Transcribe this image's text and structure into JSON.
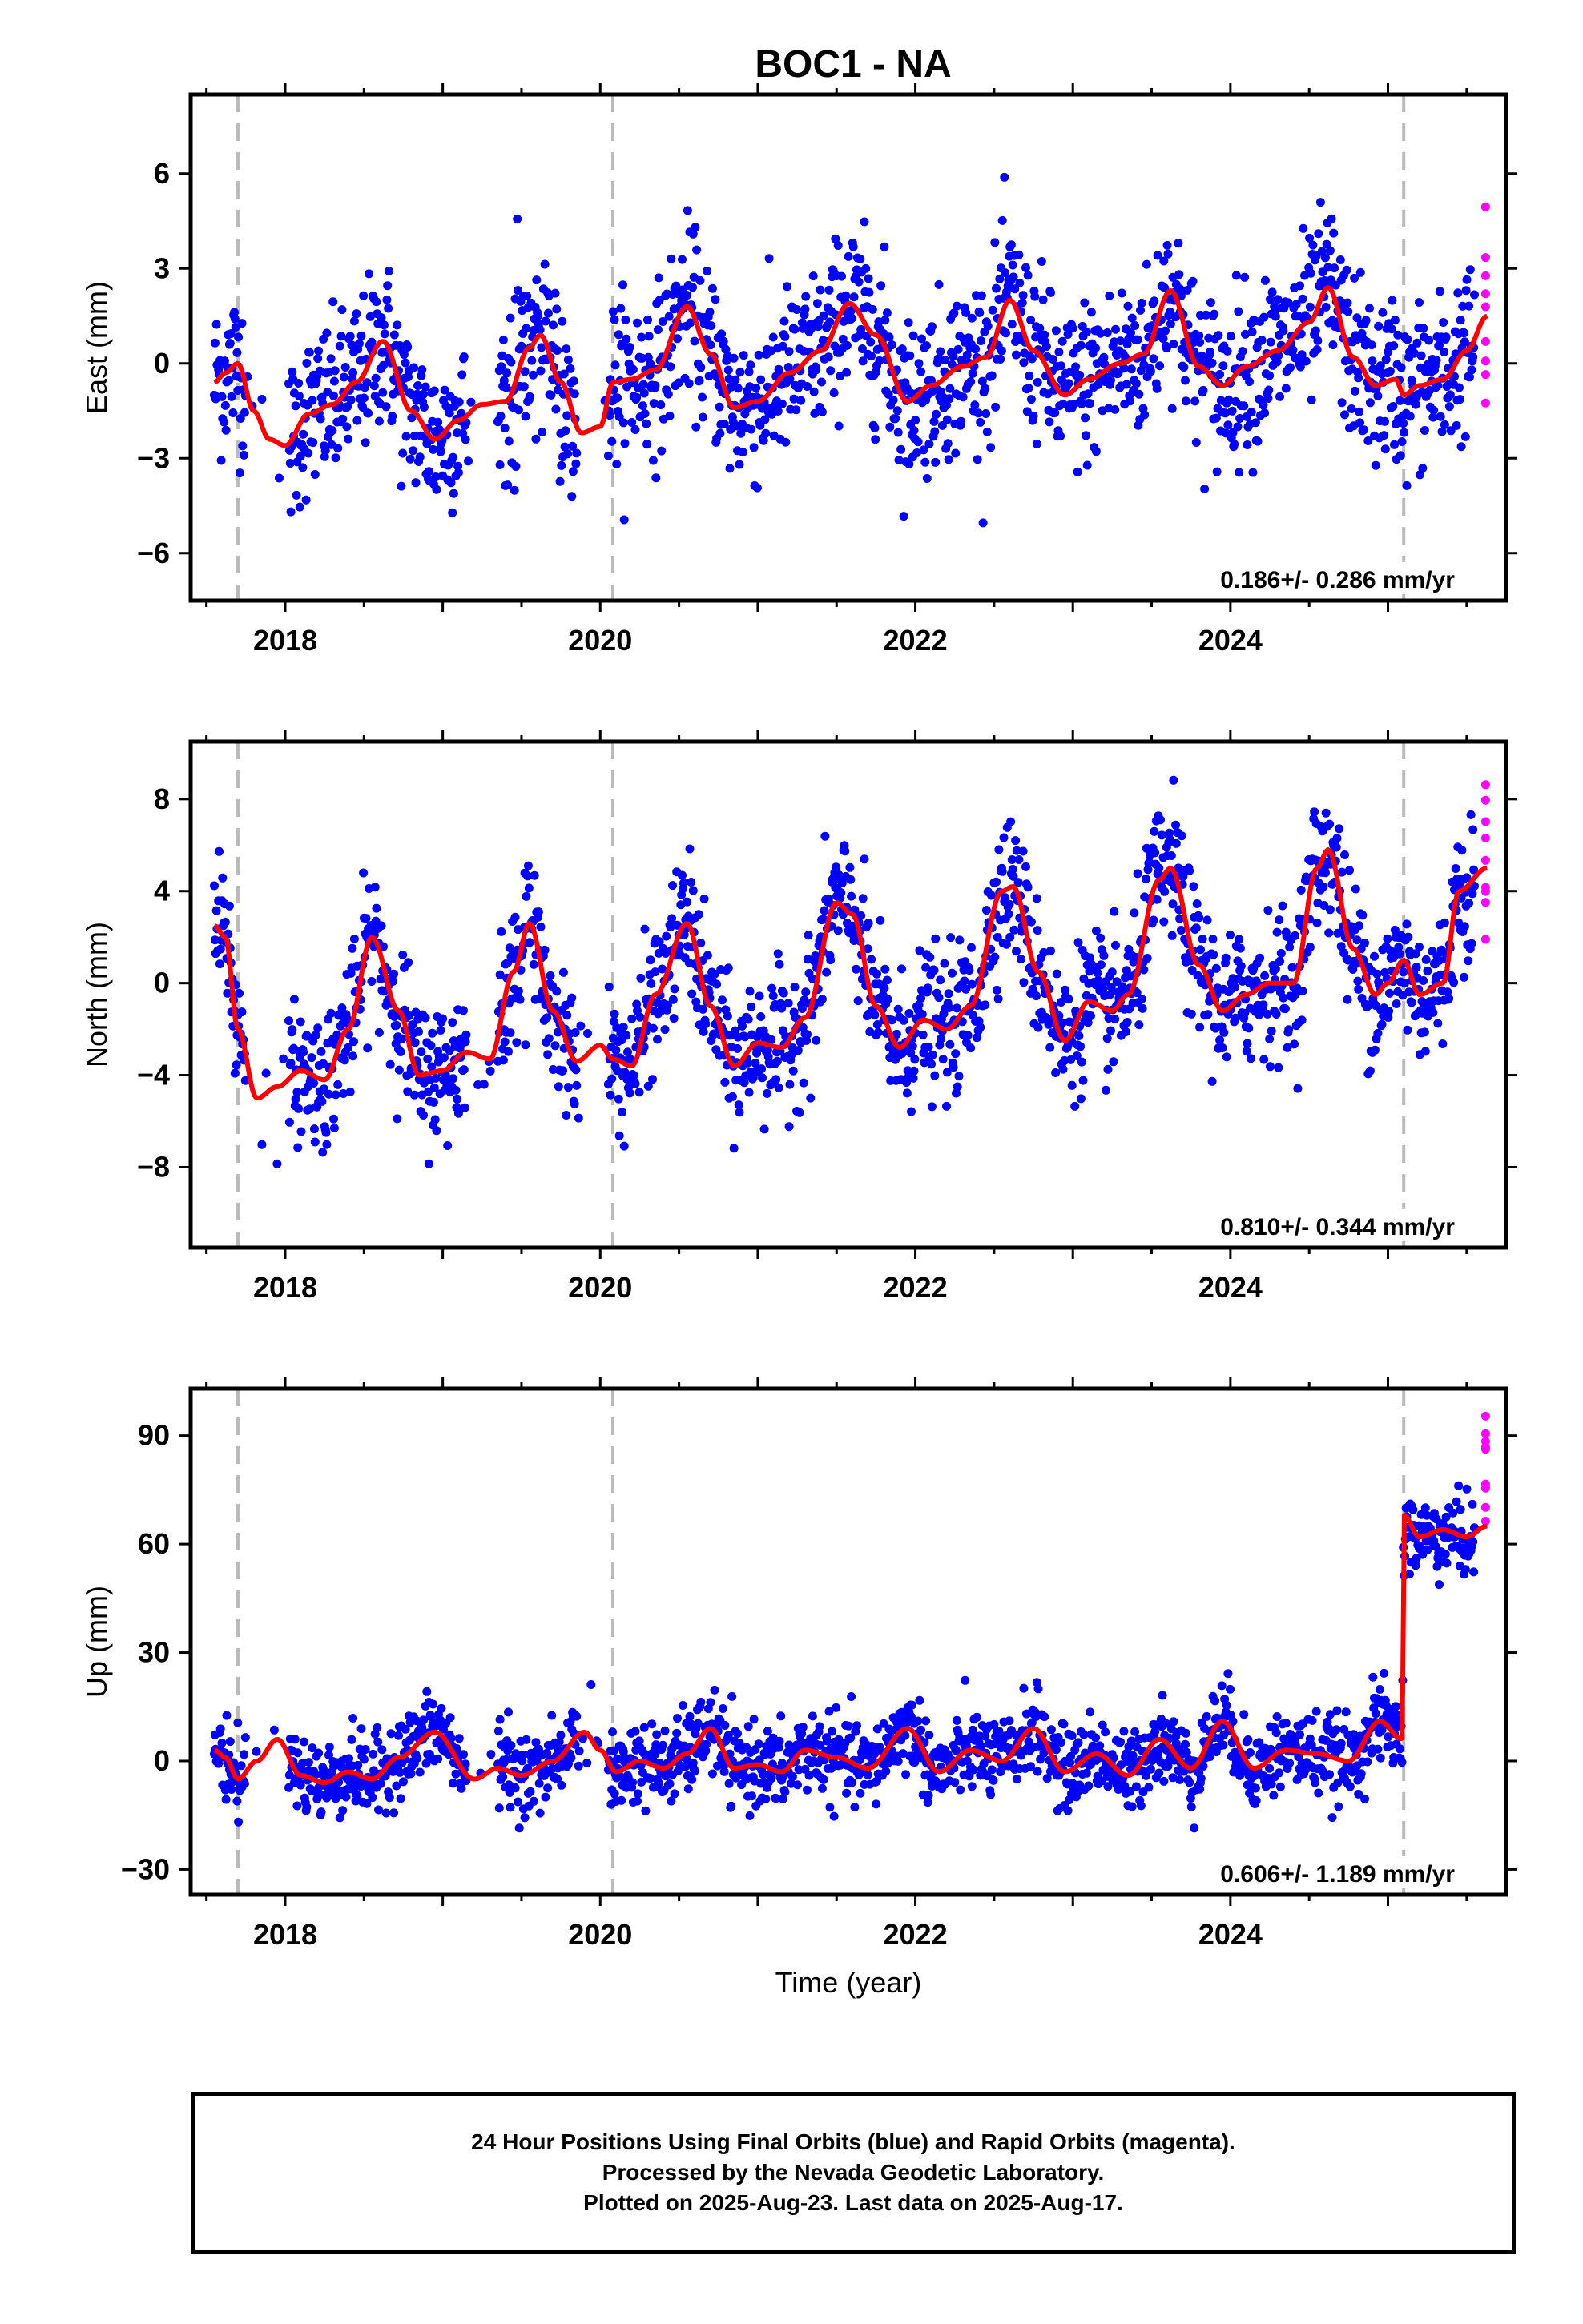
{
  "title": "BOC1 - NA",
  "footer": {
    "line1": "24 Hour Positions Using Final Orbits (blue) and Rapid Orbits (magenta).",
    "line2": "Processed by the Nevada Geodetic Laboratory.",
    "line3": "Plotted on 2025-Aug-23. Last data on 2025-Aug-17."
  },
  "colors": {
    "final": "#0000ff",
    "rapid": "#ff00ff",
    "model": "#ff0000",
    "marker_line": "#bbbbbb"
  },
  "chart_data": [
    {
      "type": "scatter",
      "ylabel": "East (mm)",
      "xlabel": "",
      "xlim": [
        2017.4,
        2025.75
      ],
      "ylim": [
        -7.5,
        8.5
      ],
      "yticks": [
        -6,
        -3,
        0,
        3,
        6
      ],
      "xticks": [
        2018,
        2020,
        2022,
        2024
      ],
      "rate_label": "0.186+/- 0.286 mm/yr",
      "marker_lines": [
        2017.7,
        2020.08,
        2025.1
      ],
      "final_range": [
        2017.55,
        2025.55
      ],
      "rapid_range": [
        2025.55,
        2025.63
      ],
      "gaps": [
        [
          2017.75,
          2018.02
        ],
        [
          2019.15,
          2019.35
        ],
        [
          2019.85,
          2020.05
        ]
      ],
      "noise_sd": 1.3,
      "model": {
        "type": "line",
        "name": "model",
        "x": [
          2017.55,
          2017.62,
          2017.7,
          2017.8,
          2017.9,
          2018.0,
          2018.15,
          2018.3,
          2018.45,
          2018.62,
          2018.8,
          2018.95,
          2019.1,
          2019.25,
          2019.4,
          2019.55,
          2019.62,
          2019.75,
          2019.88,
          2020.0,
          2020.08,
          2020.2,
          2020.35,
          2020.55,
          2020.7,
          2020.85,
          2021.0,
          2021.2,
          2021.4,
          2021.58,
          2021.75,
          2021.95,
          2022.1,
          2022.3,
          2022.45,
          2022.6,
          2022.75,
          2022.95,
          2023.1,
          2023.3,
          2023.45,
          2023.62,
          2023.8,
          2023.95,
          2024.1,
          2024.3,
          2024.5,
          2024.62,
          2024.78,
          2024.92,
          2025.05,
          2025.1,
          2025.2,
          2025.35,
          2025.5,
          2025.63
        ],
        "y": [
          -0.6,
          -0.3,
          0.0,
          -1.5,
          -2.4,
          -2.6,
          -1.6,
          -1.3,
          -0.6,
          0.7,
          -1.5,
          -2.4,
          -1.8,
          -1.3,
          -1.2,
          0.5,
          0.9,
          -0.6,
          -2.2,
          -2.0,
          -0.6,
          -0.5,
          -0.2,
          1.8,
          0.3,
          -1.4,
          -1.2,
          -0.3,
          0.4,
          1.9,
          0.9,
          -1.2,
          -0.7,
          -0.1,
          0.2,
          2.0,
          0.4,
          -1.0,
          -0.5,
          0.0,
          0.3,
          2.3,
          -0.1,
          -0.7,
          -0.1,
          0.4,
          1.3,
          2.4,
          0.2,
          -0.7,
          -0.5,
          -1.0,
          -0.7,
          -0.5,
          0.4,
          1.5
        ]
      }
    },
    {
      "type": "scatter",
      "ylabel": "North (mm)",
      "xlabel": "",
      "xlim": [
        2017.4,
        2025.75
      ],
      "ylim": [
        -11.5,
        10.5
      ],
      "yticks": [
        -8,
        -4,
        0,
        4,
        8
      ],
      "xticks": [
        2018,
        2020,
        2022,
        2024
      ],
      "rate_label": "0.810+/- 0.344 mm/yr",
      "marker_lines": [
        2017.7,
        2020.08,
        2025.1
      ],
      "final_range": [
        2017.55,
        2025.55
      ],
      "rapid_range": [
        2025.55,
        2025.63
      ],
      "gaps": [
        [
          2017.75,
          2018.02
        ],
        [
          2019.15,
          2019.35
        ],
        [
          2019.85,
          2020.05
        ]
      ],
      "noise_sd": 1.5,
      "model": {
        "type": "line",
        "name": "model",
        "x": [
          2017.55,
          2017.62,
          2017.7,
          2017.82,
          2017.95,
          2018.1,
          2018.25,
          2018.4,
          2018.55,
          2018.72,
          2018.85,
          2019.0,
          2019.15,
          2019.3,
          2019.45,
          2019.55,
          2019.7,
          2019.85,
          2020.0,
          2020.08,
          2020.2,
          2020.35,
          2020.55,
          2020.7,
          2020.85,
          2021.0,
          2021.15,
          2021.3,
          2021.5,
          2021.6,
          2021.75,
          2021.9,
          2022.05,
          2022.2,
          2022.35,
          2022.55,
          2022.62,
          2022.78,
          2022.95,
          2023.1,
          2023.25,
          2023.35,
          2023.55,
          2023.62,
          2023.8,
          2023.95,
          2024.1,
          2024.25,
          2024.4,
          2024.55,
          2024.62,
          2024.78,
          2024.92,
          2025.0,
          2025.1,
          2025.2,
          2025.35,
          2025.45,
          2025.63
        ],
        "y": [
          2.5,
          2.0,
          -2.0,
          -5.0,
          -4.5,
          -3.8,
          -4.2,
          -2.0,
          2.0,
          -1.2,
          -4.0,
          -3.8,
          -3.0,
          -3.3,
          0.5,
          2.6,
          -1.2,
          -3.4,
          -2.7,
          -3.3,
          -3.6,
          -0.5,
          2.6,
          -1.0,
          -3.6,
          -2.6,
          -2.8,
          -1.5,
          3.5,
          3.0,
          -1.0,
          -2.8,
          -1.6,
          -2.0,
          -1.0,
          4.0,
          4.2,
          0.5,
          -2.5,
          -0.8,
          -1.2,
          -0.5,
          4.5,
          5.0,
          0.8,
          -1.2,
          -0.5,
          0.0,
          0.0,
          5.0,
          5.8,
          1.5,
          -0.5,
          0.0,
          1.0,
          -0.5,
          0.0,
          4.0,
          5.0
        ]
      }
    },
    {
      "type": "scatter",
      "ylabel": "Up (mm)",
      "xlabel": "Time (year)",
      "xlim": [
        2017.4,
        2025.75
      ],
      "ylim": [
        -37,
        103
      ],
      "yticks": [
        -30,
        0,
        30,
        60,
        90
      ],
      "xticks": [
        2018,
        2020,
        2022,
        2024
      ],
      "rate_label": "0.606+/- 1.189 mm/yr",
      "marker_lines": [
        2017.7,
        2020.08,
        2025.1
      ],
      "final_range": [
        2017.55,
        2025.55
      ],
      "rapid_range": [
        2025.55,
        2025.63
      ],
      "gaps": [
        [
          2017.75,
          2018.02
        ],
        [
          2019.15,
          2019.35
        ],
        [
          2019.85,
          2020.05
        ]
      ],
      "noise_sd": 5.5,
      "model": {
        "type": "line",
        "name": "model",
        "x": [
          2017.55,
          2017.62,
          2017.7,
          2017.82,
          2017.95,
          2018.1,
          2018.25,
          2018.4,
          2018.55,
          2018.72,
          2018.95,
          2019.2,
          2019.35,
          2019.5,
          2019.7,
          2019.9,
          2020.0,
          2020.1,
          2020.25,
          2020.4,
          2020.55,
          2020.7,
          2020.85,
          2021.0,
          2021.15,
          2021.3,
          2021.5,
          2021.7,
          2021.95,
          2022.15,
          2022.35,
          2022.55,
          2022.75,
          2022.95,
          2023.15,
          2023.35,
          2023.55,
          2023.75,
          2023.95,
          2024.15,
          2024.35,
          2024.55,
          2024.75,
          2024.95,
          2025.09,
          2025.1,
          2025.2,
          2025.35,
          2025.5,
          2025.63
        ],
        "y": [
          3,
          1,
          -5,
          0,
          6,
          -4,
          -6,
          -3,
          -5,
          1,
          8,
          -5,
          -2,
          -4,
          0,
          8,
          3,
          -3,
          0,
          -2,
          2,
          9,
          -2,
          -1,
          -3,
          3,
          1,
          -2,
          9,
          -3,
          3,
          0,
          9,
          -3,
          2,
          -4,
          6,
          -2,
          11,
          -2,
          3,
          2,
          0,
          11,
          6,
          68,
          62,
          64,
          62,
          65
        ]
      },
      "model_break": 2025.1,
      "step_after": 62
    }
  ]
}
